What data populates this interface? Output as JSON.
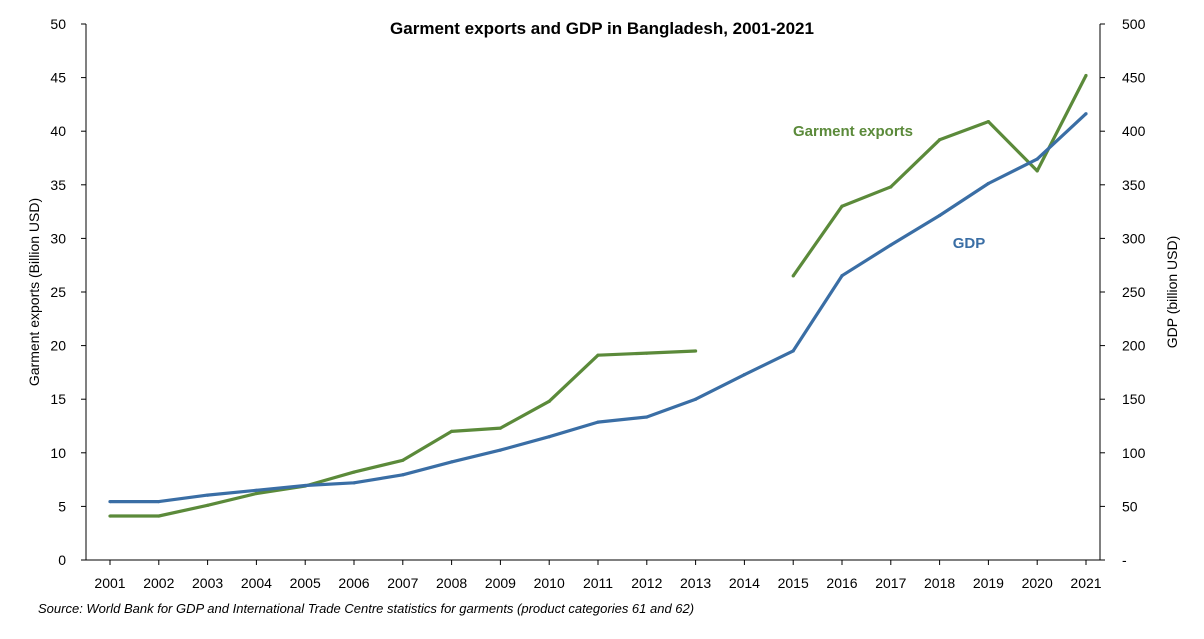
{
  "chart_data": {
    "type": "line",
    "title": "Garment exports and GDP in Bangladesh, 2001-2021",
    "ylabel_left": "Garment exports (Billion USD)",
    "ylabel_right": "GDP (billion USD)",
    "xlabel": "",
    "categories": [
      "2001",
      "2002",
      "2003",
      "2004",
      "2005",
      "2006",
      "2007",
      "2008",
      "2009",
      "2010",
      "2011",
      "2012",
      "2013",
      "2014",
      "2015",
      "2016",
      "2017",
      "2018",
      "2019",
      "2020",
      "2021"
    ],
    "left_axis": {
      "ylim": [
        0,
        50
      ],
      "ticks": [
        0,
        5,
        10,
        15,
        20,
        25,
        30,
        35,
        40,
        45,
        50
      ],
      "tick_labels": [
        "0",
        "5",
        "10",
        "15",
        "20",
        "25",
        "30",
        "35",
        "40",
        "45",
        "50"
      ]
    },
    "right_axis": {
      "ylim": [
        0,
        500
      ],
      "ticks": [
        0,
        50,
        100,
        150,
        200,
        250,
        300,
        350,
        400,
        450,
        500
      ],
      "tick_labels": [
        "-",
        "50",
        "100",
        "150",
        "200",
        "250",
        "300",
        "350",
        "400",
        "450",
        "500"
      ]
    },
    "series": [
      {
        "name": "Garment exports",
        "axis": "left",
        "color": "#5b8a3a",
        "values": [
          4.1,
          4.1,
          5.1,
          6.2,
          6.9,
          8.2,
          9.3,
          12.0,
          12.3,
          14.8,
          19.1,
          19.3,
          19.5,
          null,
          26.5,
          33.0,
          34.8,
          39.2,
          40.9,
          36.3,
          45.2
        ]
      },
      {
        "name": "GDP",
        "axis": "right",
        "color": "#3a6ea5",
        "values": [
          54.5,
          54.5,
          60.5,
          65.0,
          69.5,
          72.0,
          79.5,
          91.5,
          102.5,
          115.0,
          128.6,
          133.4,
          150.0,
          172.9,
          195.1,
          265.2,
          293.8,
          321.4,
          351.2,
          374.0,
          416.3
        ]
      }
    ],
    "annotations": [
      {
        "text": "Garment exports",
        "series": "Garment exports"
      },
      {
        "text": "GDP",
        "series": "GDP"
      }
    ],
    "grid": false,
    "legend": "none"
  },
  "source_note": "Source: World Bank for GDP and International Trade Centre statistics for garments (product categories 61 and 62)"
}
